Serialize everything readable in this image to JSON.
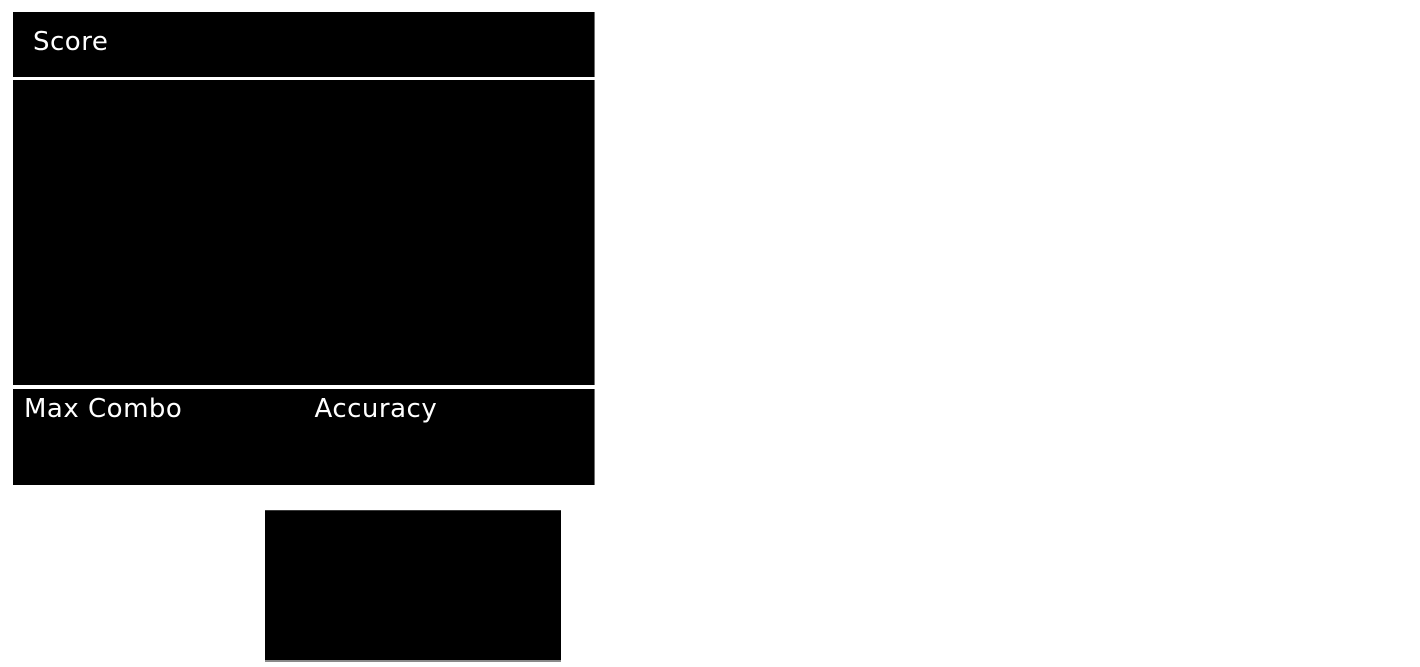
{
  "page": {
    "background_color": "#ffffff",
    "panel_color": "#000000",
    "text_color": "#ffffff",
    "edge_shadow_color": "#6e6e6e"
  },
  "results": {
    "score": {
      "label": "Score",
      "value": ""
    },
    "details_panel": {
      "content": ""
    },
    "stats": [
      {
        "label": "Max Combo",
        "value": ""
      },
      {
        "label": "Accuracy",
        "value": ""
      }
    ]
  }
}
